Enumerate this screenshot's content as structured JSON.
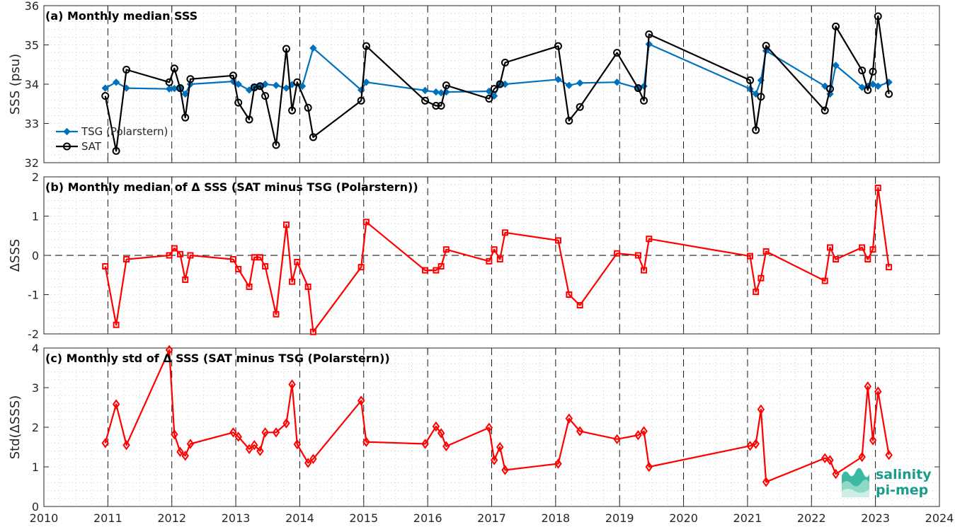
{
  "colors": {
    "tsg": "#0072bd",
    "sat": "#000000",
    "delta": "#ff0000",
    "grid": "#b0b0b0",
    "axis": "#262626",
    "logo": "#1a9c8c"
  },
  "logo": {
    "line1": "salinity",
    "line2": "pi-mep"
  },
  "chart_data": [
    {
      "type": "line",
      "title": "(a) Monthly median SSS",
      "ylabel": "SSS (psu)",
      "xlim": [
        2010,
        2024
      ],
      "ylim": [
        32,
        36
      ],
      "yticks": [
        "32",
        "33",
        "34",
        "35",
        "36"
      ],
      "ytick_values": [
        32,
        33,
        34,
        35,
        36
      ],
      "grid": true,
      "legend_position": "left",
      "series": [
        {
          "name": "TSG (Polarstern)",
          "marker": "filled-diamond",
          "x": [
            2010.96,
            2011.13,
            2011.29,
            2011.96,
            2012.04,
            2012.13,
            2012.21,
            2012.29,
            2012.96,
            2013.04,
            2013.21,
            2013.29,
            2013.38,
            2013.46,
            2013.63,
            2013.79,
            2013.88,
            2014.04,
            2014.21,
            2014.96,
            2015.04,
            2015.96,
            2016.13,
            2016.21,
            2016.29,
            2016.96,
            2017.04,
            2017.13,
            2017.21,
            2018.04,
            2018.21,
            2018.38,
            2018.96,
            2019.29,
            2019.38,
            2019.46,
            2021.04,
            2021.13,
            2021.21,
            2021.29,
            2022.21,
            2022.29,
            2022.38,
            2022.79,
            2022.88,
            2022.96,
            2023.04,
            2023.21
          ],
          "values": [
            33.9,
            34.05,
            33.9,
            33.88,
            33.89,
            33.9,
            33.75,
            34.0,
            34.07,
            34.0,
            33.85,
            33.93,
            33.95,
            34.0,
            33.97,
            33.9,
            33.99,
            33.95,
            34.92,
            33.85,
            34.05,
            33.84,
            33.8,
            33.78,
            33.8,
            33.82,
            33.7,
            34.0,
            34.0,
            34.12,
            33.97,
            34.03,
            34.05,
            33.9,
            33.95,
            35.02,
            33.88,
            33.75,
            34.1,
            34.85,
            33.95,
            33.75,
            34.48,
            33.92,
            33.95,
            34.0,
            33.95,
            34.05
          ]
        },
        {
          "name": "SAT",
          "marker": "open-circle",
          "x": [
            2010.96,
            2011.13,
            2011.29,
            2011.96,
            2012.04,
            2012.13,
            2012.21,
            2012.29,
            2012.96,
            2013.04,
            2013.21,
            2013.29,
            2013.38,
            2013.46,
            2013.63,
            2013.79,
            2013.88,
            2013.96,
            2014.13,
            2014.21,
            2014.96,
            2015.04,
            2015.96,
            2016.13,
            2016.21,
            2016.29,
            2016.96,
            2017.04,
            2017.13,
            2017.21,
            2018.04,
            2018.21,
            2018.38,
            2018.96,
            2019.29,
            2019.38,
            2019.46,
            2021.04,
            2021.13,
            2021.21,
            2021.29,
            2022.21,
            2022.29,
            2022.38,
            2022.79,
            2022.88,
            2022.96,
            2023.04,
            2023.21
          ],
          "values": [
            33.7,
            32.3,
            34.37,
            34.05,
            34.4,
            33.9,
            33.15,
            34.13,
            34.22,
            33.53,
            33.1,
            33.92,
            33.95,
            33.7,
            32.45,
            34.9,
            33.33,
            34.05,
            33.4,
            32.65,
            33.58,
            34.97,
            33.58,
            33.45,
            33.45,
            33.97,
            33.63,
            33.88,
            34.0,
            34.55,
            34.97,
            33.07,
            33.42,
            34.8,
            33.9,
            33.58,
            35.27,
            34.1,
            32.83,
            33.68,
            34.98,
            33.33,
            33.88,
            35.47,
            34.35,
            33.85,
            34.32,
            35.73,
            33.75
          ]
        }
      ]
    },
    {
      "type": "line",
      "title": "(b) Monthly median of Δ SSS (SAT minus TSG (Polarstern))",
      "ylabel": "ΔSSS",
      "xlim": [
        2010,
        2024
      ],
      "ylim": [
        -2,
        2
      ],
      "yticks": [
        "-2",
        "-1",
        "0",
        "1",
        "2"
      ],
      "ytick_values": [
        -2,
        -1,
        0,
        1,
        2
      ],
      "reference_line": 0,
      "grid": true,
      "series": [
        {
          "marker": "open-square",
          "x": [
            2010.96,
            2011.13,
            2011.29,
            2011.96,
            2012.04,
            2012.13,
            2012.21,
            2012.29,
            2012.96,
            2013.04,
            2013.21,
            2013.29,
            2013.38,
            2013.46,
            2013.63,
            2013.79,
            2013.88,
            2013.96,
            2014.13,
            2014.21,
            2014.96,
            2015.04,
            2015.96,
            2016.13,
            2016.21,
            2016.29,
            2016.96,
            2017.04,
            2017.13,
            2017.21,
            2018.04,
            2018.21,
            2018.38,
            2018.96,
            2019.29,
            2019.38,
            2019.46,
            2021.04,
            2021.13,
            2021.21,
            2021.29,
            2022.21,
            2022.29,
            2022.38,
            2022.79,
            2022.88,
            2022.96,
            2023.04,
            2023.21
          ],
          "values": [
            -0.28,
            -1.77,
            -0.1,
            0.0,
            0.18,
            0.03,
            -0.62,
            0.0,
            -0.1,
            -0.35,
            -0.8,
            -0.05,
            -0.05,
            -0.28,
            -1.5,
            0.78,
            -0.67,
            -0.17,
            -0.8,
            -1.95,
            -0.3,
            0.85,
            -0.38,
            -0.38,
            -0.28,
            0.15,
            -0.15,
            0.15,
            -0.1,
            0.58,
            0.38,
            -1.0,
            -1.27,
            0.05,
            0.0,
            -0.38,
            0.42,
            -0.02,
            -0.93,
            -0.58,
            0.1,
            -0.65,
            0.2,
            -0.1,
            0.2,
            -0.1,
            0.15,
            1.72,
            -0.3
          ]
        }
      ]
    },
    {
      "type": "line",
      "title": "(c) Monthly std of Δ SSS (SAT minus TSG (Polarstern))",
      "ylabel": "Std(ΔSSS)",
      "xlim": [
        2010,
        2024
      ],
      "ylim": [
        0,
        4
      ],
      "yticks": [
        "0",
        "1",
        "2",
        "3",
        "4"
      ],
      "ytick_values": [
        0,
        1,
        2,
        3,
        4
      ],
      "xticks": [
        "2010",
        "2011",
        "2012",
        "2013",
        "2014",
        "2015",
        "2016",
        "2017",
        "2018",
        "2019",
        "2020",
        "2021",
        "2022",
        "2023",
        "2024"
      ],
      "xtick_values": [
        2010,
        2011,
        2012,
        2013,
        2014,
        2015,
        2016,
        2017,
        2018,
        2019,
        2020,
        2021,
        2022,
        2023,
        2024
      ],
      "grid": true,
      "series": [
        {
          "marker": "open-diamond",
          "x": [
            2010.96,
            2011.13,
            2011.29,
            2011.96,
            2012.04,
            2012.13,
            2012.21,
            2012.29,
            2012.96,
            2013.04,
            2013.21,
            2013.29,
            2013.38,
            2013.46,
            2013.63,
            2013.79,
            2013.88,
            2013.96,
            2014.13,
            2014.21,
            2014.96,
            2015.04,
            2015.96,
            2016.13,
            2016.21,
            2016.29,
            2016.96,
            2017.04,
            2017.13,
            2017.21,
            2018.04,
            2018.21,
            2018.38,
            2018.96,
            2019.29,
            2019.38,
            2019.46,
            2021.04,
            2021.13,
            2021.21,
            2021.29,
            2022.21,
            2022.29,
            2022.38,
            2022.79,
            2022.88,
            2022.96,
            2023.04,
            2023.21
          ],
          "values": [
            1.6,
            2.58,
            1.55,
            3.95,
            1.82,
            1.38,
            1.28,
            1.58,
            1.87,
            1.76,
            1.45,
            1.55,
            1.4,
            1.87,
            1.87,
            2.1,
            3.08,
            1.57,
            1.1,
            1.2,
            2.67,
            1.63,
            1.58,
            2.02,
            1.85,
            1.52,
            1.99,
            1.17,
            1.5,
            0.92,
            1.08,
            2.22,
            1.9,
            1.7,
            1.8,
            1.9,
            1.0,
            1.53,
            1.58,
            2.45,
            0.62,
            1.22,
            1.17,
            0.82,
            1.25,
            3.03,
            1.67,
            2.9,
            1.3
          ]
        }
      ]
    }
  ]
}
